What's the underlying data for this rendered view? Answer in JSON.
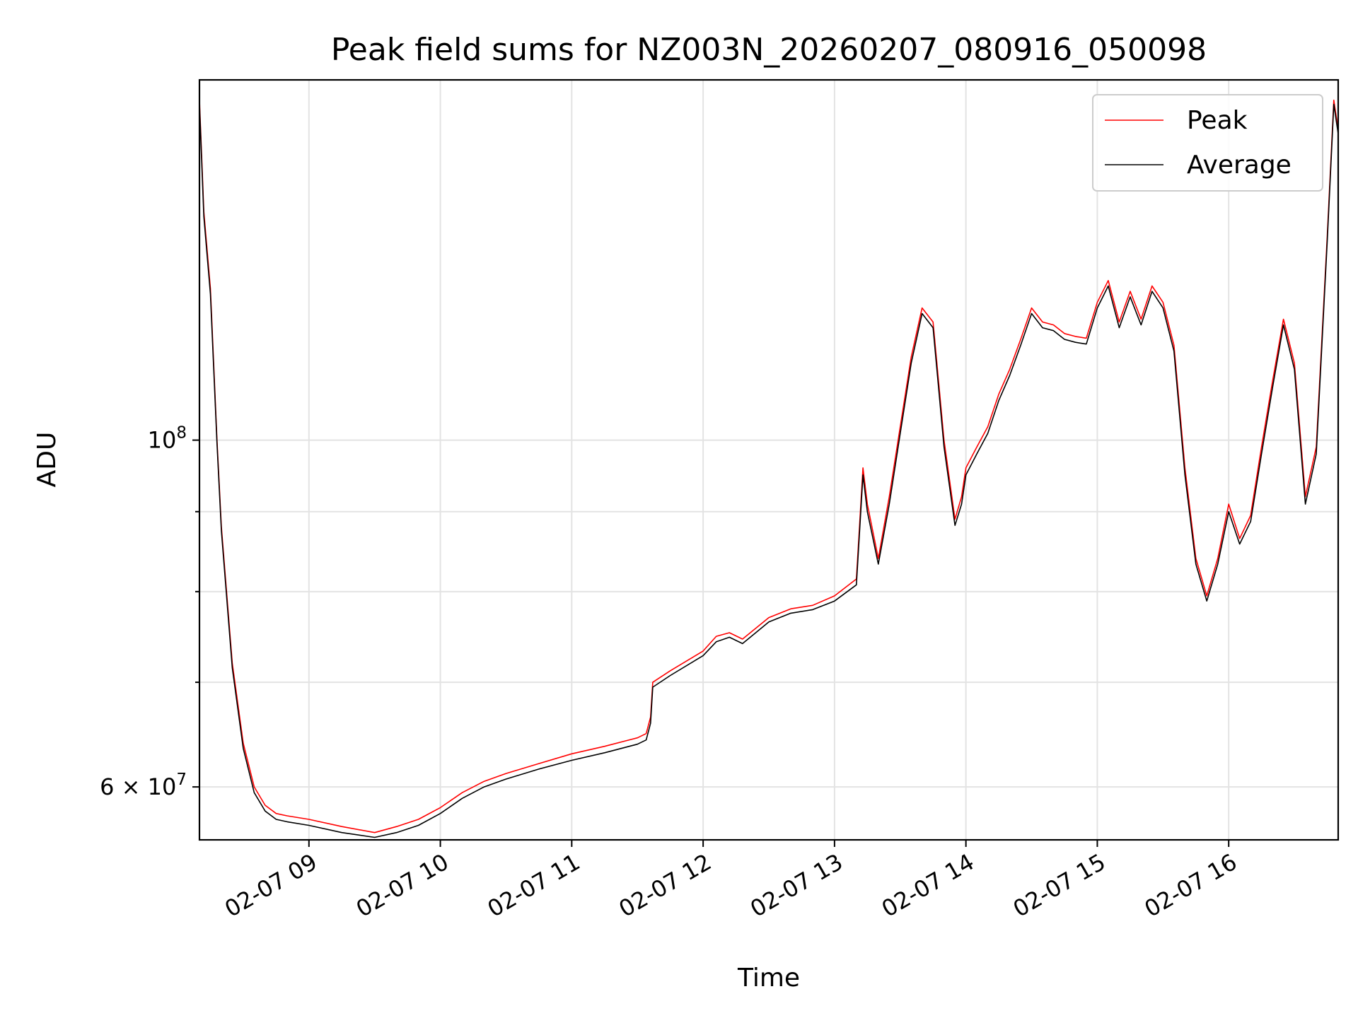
{
  "chart_data": {
    "type": "line",
    "title": "Peak field sums for NZ003N_20260207_080916_050098",
    "xlabel": "Time",
    "ylabel": "ADU",
    "yscale": "log",
    "grid": true,
    "legend": "top-right",
    "xlim": [
      "02-07 08:10",
      "02-07 16:50"
    ],
    "ylim": [
      55500000,
      170000000
    ],
    "x_ticks": [
      "02-07 09",
      "02-07 10",
      "02-07 11",
      "02-07 12",
      "02-07 13",
      "02-07 14",
      "02-07 15",
      "02-07 16"
    ],
    "y_tick_labels": [
      {
        "value": 60000000,
        "mantissa": "6",
        "exponent": "7"
      },
      {
        "value": 100000000,
        "mantissa": "",
        "exponent": "8"
      }
    ],
    "y_minor_ticks": [
      70000000,
      80000000,
      90000000
    ],
    "series": [
      {
        "name": "Peak",
        "color": "#ff0000",
        "width": 1.6
      },
      {
        "name": "Average",
        "color": "#000000",
        "width": 1.6
      }
    ],
    "x": [
      "02-07 08:10",
      "02-07 08:12",
      "02-07 08:15",
      "02-07 08:18",
      "02-07 08:20",
      "02-07 08:25",
      "02-07 08:30",
      "02-07 08:35",
      "02-07 08:40",
      "02-07 08:45",
      "02-07 08:50",
      "02-07 09:00",
      "02-07 09:15",
      "02-07 09:30",
      "02-07 09:40",
      "02-07 09:50",
      "02-07 10:00",
      "02-07 10:10",
      "02-07 10:20",
      "02-07 10:30",
      "02-07 10:45",
      "02-07 11:00",
      "02-07 11:15",
      "02-07 11:30",
      "02-07 11:34",
      "02-07 11:36",
      "02-07 11:37",
      "02-07 11:45",
      "02-07 12:00",
      "02-07 12:06",
      "02-07 12:12",
      "02-07 12:18",
      "02-07 12:30",
      "02-07 12:40",
      "02-07 12:50",
      "02-07 13:00",
      "02-07 13:10",
      "02-07 13:13",
      "02-07 13:15",
      "02-07 13:20",
      "02-07 13:25",
      "02-07 13:30",
      "02-07 13:35",
      "02-07 13:40",
      "02-07 13:45",
      "02-07 13:50",
      "02-07 13:55",
      "02-07 13:58",
      "02-07 14:00",
      "02-07 14:05",
      "02-07 14:10",
      "02-07 14:15",
      "02-07 14:20",
      "02-07 14:25",
      "02-07 14:30",
      "02-07 14:35",
      "02-07 14:40",
      "02-07 14:45",
      "02-07 14:50",
      "02-07 14:55",
      "02-07 15:00",
      "02-07 15:05",
      "02-07 15:10",
      "02-07 15:15",
      "02-07 15:20",
      "02-07 15:25",
      "02-07 15:30",
      "02-07 15:35",
      "02-07 15:40",
      "02-07 15:45",
      "02-07 15:50",
      "02-07 15:55",
      "02-07 16:00",
      "02-07 16:05",
      "02-07 16:10",
      "02-07 16:15",
      "02-07 16:20",
      "02-07 16:25",
      "02-07 16:30",
      "02-07 16:35",
      "02-07 16:40",
      "02-07 16:45",
      "02-07 16:48",
      "02-07 16:50"
    ],
    "peak": [
      165000000,
      140000000,
      125000000,
      100000000,
      88000000,
      72000000,
      64000000,
      60000000,
      58400000,
      57700000,
      57500000,
      57200000,
      56600000,
      56100000,
      56600000,
      57200000,
      58200000,
      59500000,
      60500000,
      61200000,
      62100000,
      63000000,
      63700000,
      64500000,
      64900000,
      66500000,
      70000000,
      71200000,
      73300000,
      74900000,
      75300000,
      74600000,
      77000000,
      78000000,
      78400000,
      79500000,
      81500000,
      96000000,
      91000000,
      84000000,
      92000000,
      102000000,
      113000000,
      121500000,
      119000000,
      100000000,
      89000000,
      92000000,
      96000000,
      99000000,
      102000000,
      107000000,
      111000000,
      116000000,
      121500000,
      119000000,
      118500000,
      117000000,
      116500000,
      116200000,
      122500000,
      126500000,
      119000000,
      124500000,
      119500000,
      125500000,
      122500000,
      115000000,
      96000000,
      84000000,
      79500000,
      84000000,
      91000000,
      86500000,
      89500000,
      99000000,
      109000000,
      119500000,
      112000000,
      92000000,
      99000000,
      135000000,
      165000000,
      158000000
    ],
    "average": [
      164000000,
      139000000,
      124000000,
      99500000,
      87500000,
      71500000,
      63500000,
      59500000,
      57900000,
      57200000,
      57000000,
      56700000,
      56100000,
      55700000,
      56100000,
      56700000,
      57700000,
      59000000,
      60000000,
      60700000,
      61600000,
      62400000,
      63100000,
      63900000,
      64300000,
      65900000,
      69500000,
      70700000,
      72800000,
      74300000,
      74800000,
      74100000,
      76500000,
      77500000,
      77900000,
      78900000,
      80800000,
      95000000,
      90000000,
      83300000,
      91000000,
      101000000,
      112000000,
      120500000,
      118000000,
      99000000,
      88200000,
      91000000,
      95000000,
      98000000,
      101000000,
      106000000,
      110000000,
      115000000,
      120500000,
      118000000,
      117500000,
      116000000,
      115500000,
      115200000,
      121500000,
      125500000,
      118000000,
      123500000,
      118500000,
      124500000,
      121500000,
      114000000,
      95000000,
      83300000,
      78900000,
      83300000,
      90000000,
      85800000,
      88700000,
      98000000,
      108000000,
      118500000,
      111000000,
      91000000,
      98000000,
      134000000,
      164000000,
      157000000
    ]
  }
}
